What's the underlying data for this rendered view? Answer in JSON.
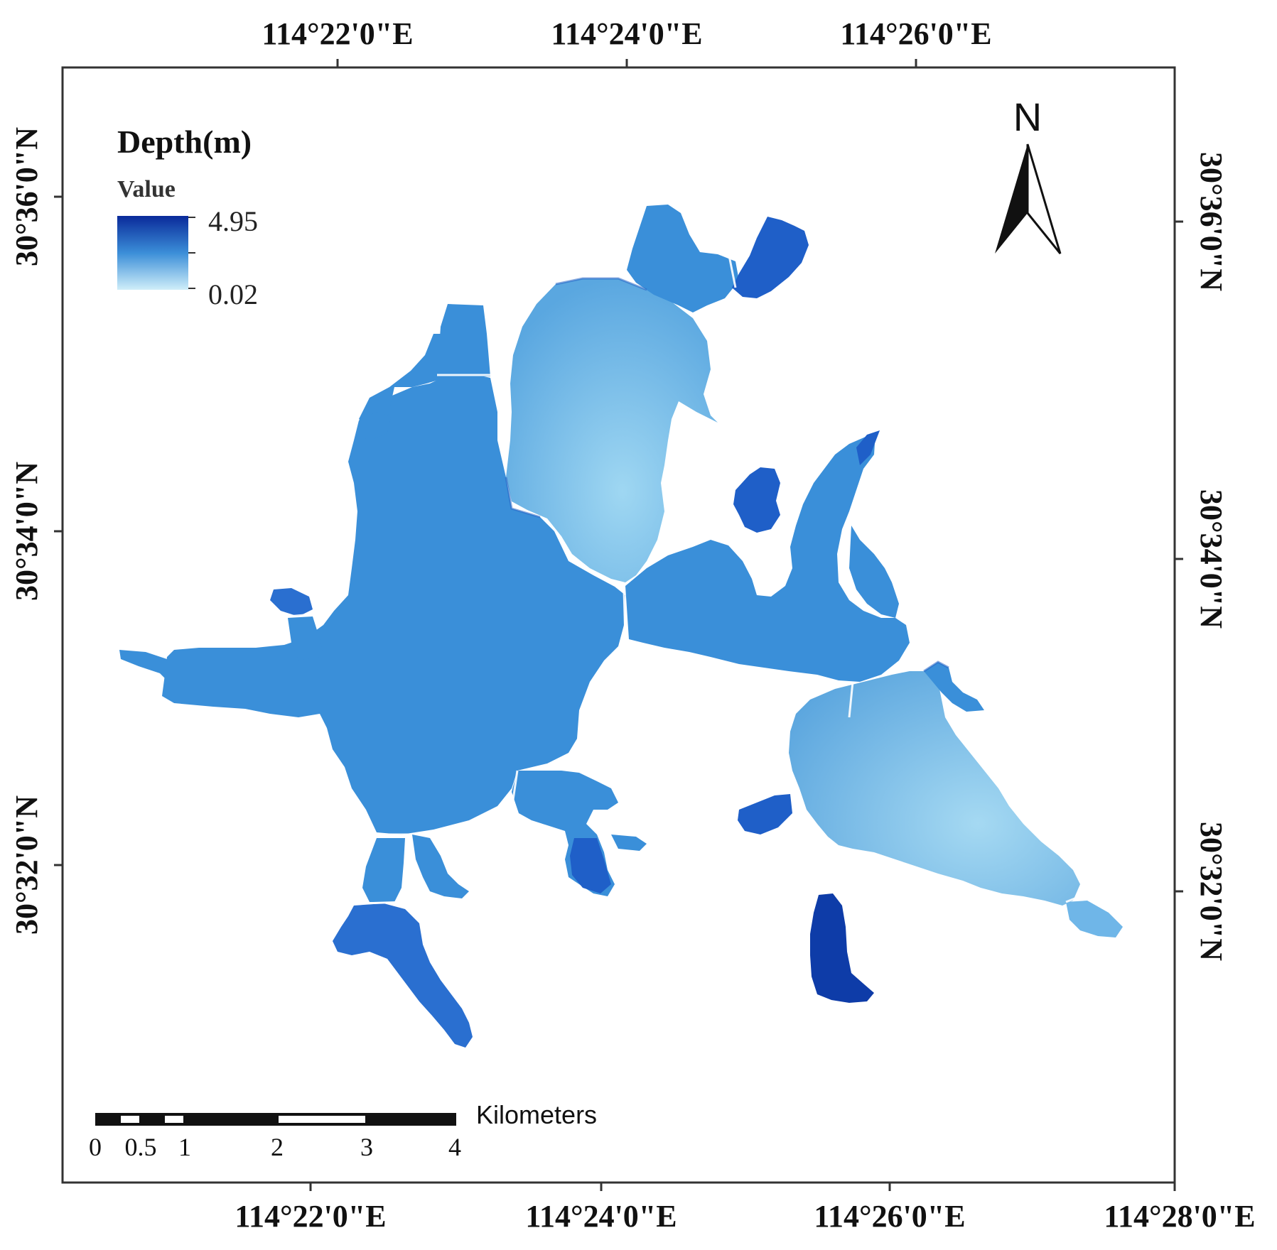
{
  "map": {
    "top_lon_labels": [
      "114°22'0\"E",
      "114°24'0\"E",
      "114°26'0\"E"
    ],
    "bottom_lon_labels": [
      "114°22'0\"E",
      "114°24'0\"E",
      "114°26'0\"E",
      "114°28'0\"E"
    ],
    "left_lat_labels": [
      "30°36'0\"N",
      "30°34'0\"N",
      "30°32'0\"N"
    ],
    "right_lat_labels": [
      "30°36'0\"N",
      "30°34'0\"N",
      "30°32'0\"N"
    ]
  },
  "legend": {
    "title": "Depth(m)",
    "subtitle": "Value",
    "max_label": "4.95",
    "min_label": "0.02",
    "color_deep": "#0a2a9a",
    "color_mid": "#3b8ed8",
    "color_shallow": "#cfeef9"
  },
  "north_arrow": {
    "label": "N"
  },
  "scale_bar": {
    "ticks": [
      "0",
      "0.5",
      "1",
      "2",
      "3",
      "4"
    ],
    "unit": "Kilometers"
  },
  "colors": {
    "water_main": "#3a8fd9",
    "water_light": "#6fb6e8",
    "water_deep": "#1f5fc8",
    "water_deepest": "#0e3ca8",
    "frame": "#333333"
  }
}
